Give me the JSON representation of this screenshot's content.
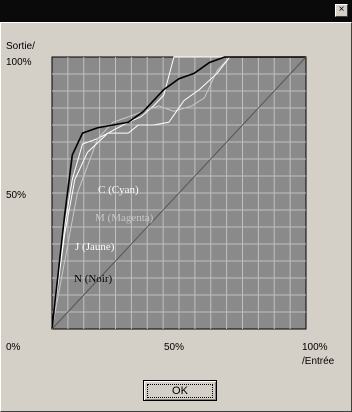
{
  "window": {
    "close_label": "×"
  },
  "chart_data": {
    "type": "line",
    "y_axis_title": "Sortie/",
    "x_axis_title": "/Entrée",
    "x_ticks": [
      "0%",
      "50%",
      "100%"
    ],
    "y_ticks": [
      "100%",
      "50%"
    ],
    "xlim": [
      0,
      100
    ],
    "ylim": [
      0,
      100
    ],
    "grid": true,
    "series": [
      {
        "name": "C (Cyan)",
        "color": "#ffffff",
        "x": [
          0,
          5,
          8,
          12,
          18,
          22,
          26,
          30,
          35,
          40,
          44,
          48,
          55,
          60,
          62,
          100
        ],
        "y": [
          0,
          38,
          55,
          68,
          70,
          72,
          74,
          76,
          78,
          82,
          86,
          100,
          100,
          100,
          100,
          100
        ]
      },
      {
        "name": "M (Magenta)",
        "color": "#c8c8c8",
        "x": [
          0,
          6,
          10,
          14,
          18,
          24,
          30,
          36,
          42,
          48,
          55,
          60,
          65,
          70,
          100
        ],
        "y": [
          0,
          30,
          50,
          60,
          70,
          76,
          78,
          80,
          82,
          80,
          82,
          85,
          95,
          100,
          100
        ]
      },
      {
        "name": "J (Jaune)",
        "color": "#ffffff",
        "x": [
          0,
          5,
          9,
          14,
          22,
          30,
          34,
          40,
          46,
          52,
          58,
          65,
          70,
          100
        ],
        "y": [
          0,
          35,
          55,
          65,
          72,
          72,
          75,
          75,
          76,
          84,
          88,
          94,
          100,
          100
        ]
      },
      {
        "name": "N (Noir)",
        "color": "#000000",
        "x": [
          0,
          5,
          8,
          12,
          18,
          24,
          30,
          36,
          40,
          44,
          50,
          56,
          62,
          68,
          72,
          100
        ],
        "y": [
          0,
          42,
          64,
          72,
          74,
          75,
          76,
          80,
          84,
          88,
          92,
          94,
          98,
          100,
          100,
          100
        ]
      },
      {
        "name": "",
        "color": "#555555",
        "x": [
          0,
          100
        ],
        "y": [
          0,
          100
        ]
      }
    ]
  },
  "labels": {
    "cyan": "C (Cyan)",
    "magenta": "M (Magenta)",
    "jaune": "J (Jaune)",
    "noir": "N (Noir)"
  },
  "buttons": {
    "ok": "OK"
  }
}
